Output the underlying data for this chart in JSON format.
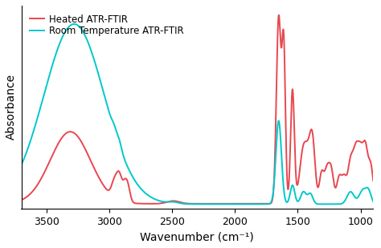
{
  "xlabel": "Wavenumber (cm⁻¹)",
  "ylabel": "Absorbance",
  "xlim": [
    3700,
    900
  ],
  "legend": [
    "Heated ATR-FTIR",
    "Room Temperature ATR-FTIR"
  ],
  "red_color": "#e8474f",
  "cyan_color": "#00c8cc",
  "background_color": "#ffffff",
  "xticks": [
    3500,
    3000,
    2500,
    2000,
    1500,
    1000
  ],
  "linewidth": 1.4
}
